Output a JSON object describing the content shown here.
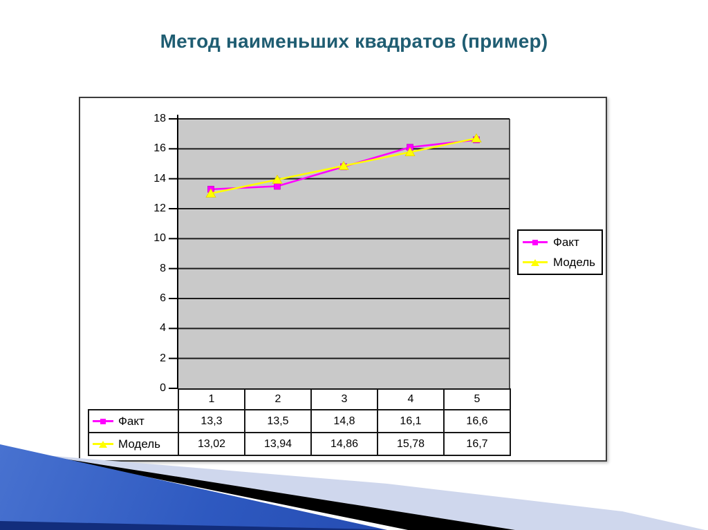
{
  "slide": {
    "title": "Метод наименьших квадратов (пример)"
  },
  "colors": {
    "title": "#1f5d72",
    "series-fact": "#ff00ff",
    "series-model": "#ffff00",
    "plot-bg": "#c9c9c9",
    "grid": "#1c1c1c",
    "wedge-blue-light": "#5c85dc",
    "wedge-blue": "#2e59c0",
    "wedge-blue-dark": "#16379b",
    "wedge-navy": "#122d7c",
    "stripe-lavender": "#cfd7ed",
    "stripe-black": "#000000"
  },
  "chart_data": {
    "type": "line",
    "title": "",
    "xlabel": "",
    "ylabel": "",
    "categories": [
      "1",
      "2",
      "3",
      "4",
      "5"
    ],
    "series": [
      {
        "name": "Факт",
        "values": [
          13.3,
          13.5,
          14.8,
          16.1,
          16.6
        ],
        "display": [
          "13,3",
          "13,5",
          "14,8",
          "16,1",
          "16,6"
        ],
        "color_key": "series-fact",
        "marker": "square"
      },
      {
        "name": "Модель",
        "values": [
          13.02,
          13.94,
          14.86,
          15.78,
          16.7
        ],
        "display": [
          "13,02",
          "13,94",
          "14,86",
          "15,78",
          "16,7"
        ],
        "color_key": "series-model",
        "marker": "triangle"
      }
    ],
    "ylim": [
      0,
      18
    ],
    "yticks": [
      0,
      2,
      4,
      6,
      8,
      10,
      12,
      14,
      16,
      18
    ],
    "grid": true,
    "gridline_color": "#1c1c1c",
    "plot_bg": "#c9c9c9",
    "legend_position": "right",
    "data_table_shown": true
  }
}
